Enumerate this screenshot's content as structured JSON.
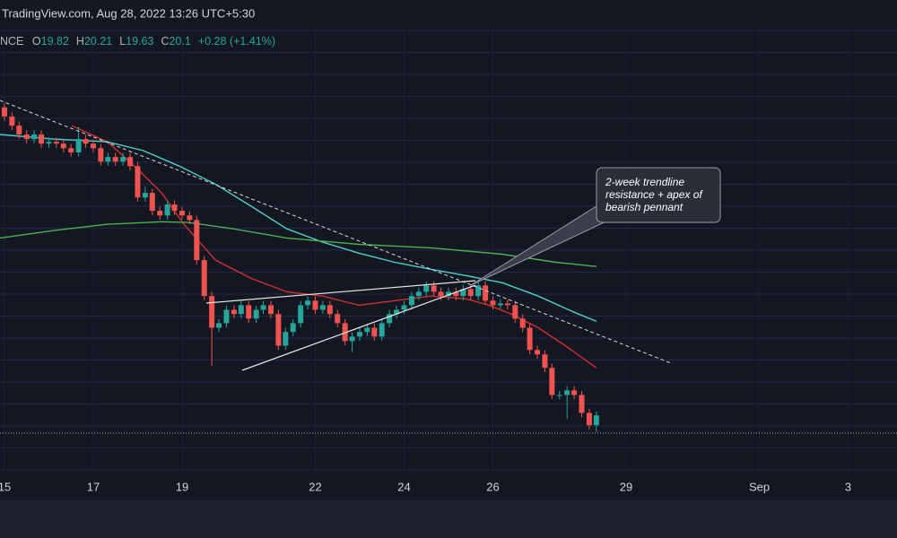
{
  "header": {
    "source": "TradingView.com, Aug 28, 2022 13:26 UTC+5:30"
  },
  "chart_data": {
    "type": "candlestick",
    "symbol": "NCE",
    "legend": [
      {
        "label": "O",
        "value": 19.82
      },
      {
        "label": "H",
        "value": 20.21
      },
      {
        "label": "L",
        "value": 19.63
      },
      {
        "label": "C",
        "value": 20.1
      }
    ],
    "change": "+0.28 (+1.41%)",
    "x": [
      15,
      15.17,
      15.33,
      15.5,
      15.67,
      15.83,
      16,
      16.17,
      16.33,
      16.5,
      16.67,
      16.83,
      17,
      17.17,
      17.33,
      17.5,
      17.67,
      17.83,
      18,
      18.17,
      18.33,
      18.5,
      18.67,
      18.83,
      19,
      19.17,
      19.33,
      19.5,
      19.67,
      19.83,
      20,
      20.17,
      20.33,
      20.5,
      20.67,
      20.83,
      21,
      21.17,
      21.33,
      21.5,
      21.67,
      21.83,
      22,
      22.17,
      22.33,
      22.5,
      22.67,
      22.83,
      23,
      23.17,
      23.33,
      23.5,
      23.67,
      23.83,
      24,
      24.17,
      24.33,
      24.5,
      24.67,
      24.83,
      25,
      25.17,
      25.33,
      25.5,
      25.67,
      25.83,
      26,
      26.17,
      26.33,
      26.5,
      26.67,
      26.83,
      27,
      27.17,
      27.33,
      27.5,
      27.67,
      27.83,
      28,
      28.17,
      28.33
    ],
    "open": [
      28.85,
      28.59,
      28.33,
      28.08,
      27.95,
      28.08,
      27.82,
      27.87,
      27.82,
      27.69,
      27.57,
      27.95,
      27.82,
      27.69,
      27.31,
      27.44,
      27.31,
      27.44,
      27.18,
      26.29,
      26.42,
      25.91,
      25.78,
      26.09,
      25.91,
      25.78,
      25.65,
      24.51,
      23.49,
      22.59,
      22.72,
      23.1,
      22.98,
      23.23,
      22.85,
      23.1,
      23.23,
      22.98,
      22.08,
      22.47,
      22.72,
      23.23,
      23.36,
      23.1,
      23.23,
      22.98,
      22.72,
      22.21,
      22.34,
      22.47,
      22.59,
      22.34,
      22.72,
      22.98,
      23.1,
      23.23,
      23.49,
      23.61,
      23.79,
      23.61,
      23.49,
      23.61,
      23.49,
      23.69,
      23.49,
      23.79,
      23.36,
      23.23,
      23.28,
      23.23,
      22.85,
      22.59,
      21.96,
      21.83,
      21.45,
      20.68,
      20.68,
      20.81,
      20.68,
      20.17,
      19.82
    ],
    "high": [
      28.97,
      28.71,
      28.45,
      28.2,
      28.2,
      28.2,
      27.99,
      27.99,
      27.94,
      27.81,
      28.3,
      28.07,
      27.94,
      27.81,
      27.56,
      27.56,
      27.56,
      27.56,
      27.3,
      26.6,
      26.54,
      26.03,
      26.21,
      26.21,
      26.03,
      25.9,
      25.77,
      24.63,
      23.61,
      22.84,
      23.22,
      23.22,
      23.35,
      23.35,
      23.22,
      23.35,
      23.35,
      23.1,
      22.59,
      22.84,
      23.35,
      23.48,
      23.48,
      23.35,
      23.35,
      23.1,
      22.84,
      22.46,
      22.59,
      22.71,
      22.71,
      22.84,
      23.1,
      23.22,
      23.35,
      23.61,
      23.73,
      23.91,
      23.91,
      23.73,
      23.73,
      23.73,
      23.81,
      23.81,
      23.91,
      23.91,
      23.48,
      23.4,
      23.4,
      23.35,
      22.97,
      22.71,
      22.08,
      21.95,
      21.57,
      20.8,
      20.93,
      20.93,
      20.8,
      20.29,
      20.21
    ],
    "low": [
      28.47,
      28.21,
      27.96,
      27.83,
      27.83,
      27.7,
      27.7,
      27.7,
      27.57,
      27.45,
      27.45,
      27.7,
      27.57,
      27.19,
      27.19,
      27.19,
      27.19,
      27.06,
      26.17,
      26.17,
      25.79,
      25.66,
      25.66,
      25.79,
      25.66,
      25.53,
      24.39,
      23.37,
      21.5,
      22.47,
      22.6,
      22.86,
      22.86,
      22.73,
      22.73,
      22.98,
      22.86,
      21.96,
      21.96,
      22.35,
      22.6,
      23.11,
      22.98,
      22.98,
      22.86,
      22.6,
      22.09,
      21.9,
      22.22,
      22.35,
      22.22,
      22.22,
      22.6,
      22.86,
      22.98,
      23.11,
      23.37,
      23.49,
      23.49,
      23.37,
      23.37,
      23.37,
      23.37,
      23.37,
      23.37,
      23.24,
      23.11,
      23.11,
      23.11,
      22.73,
      22.47,
      21.84,
      21.71,
      21.33,
      20.56,
      20.56,
      20.0,
      20.56,
      20.05,
      19.7,
      19.63
    ],
    "close": [
      28.59,
      28.33,
      28.08,
      27.95,
      28.08,
      27.82,
      27.87,
      27.82,
      27.69,
      27.57,
      27.95,
      27.82,
      27.69,
      27.31,
      27.44,
      27.31,
      27.44,
      27.18,
      26.29,
      26.42,
      25.91,
      25.78,
      26.09,
      25.91,
      25.78,
      25.65,
      24.51,
      23.49,
      22.59,
      22.72,
      23.1,
      22.98,
      23.23,
      22.85,
      23.1,
      23.23,
      22.98,
      22.08,
      22.47,
      22.72,
      23.23,
      23.36,
      23.1,
      23.23,
      22.98,
      22.72,
      22.21,
      22.34,
      22.47,
      22.59,
      22.34,
      22.72,
      22.98,
      23.1,
      23.23,
      23.49,
      23.61,
      23.79,
      23.61,
      23.49,
      23.61,
      23.49,
      23.69,
      23.49,
      23.79,
      23.36,
      23.23,
      23.28,
      23.23,
      22.85,
      22.59,
      21.96,
      21.83,
      21.45,
      20.68,
      20.68,
      20.81,
      20.68,
      20.17,
      19.82,
      20.1
    ],
    "up_color": "#26a69a",
    "down_color": "#ef5350",
    "overlays": [
      {
        "color": "#d32f2f",
        "x": [
          16.52,
          17.32,
          17.93,
          18.54,
          19.04,
          19.75,
          20.56,
          21.36,
          22.17,
          22.98,
          23.79,
          24.6,
          25.4,
          25.91,
          26.41,
          27.02,
          27.63,
          28.33
        ],
        "values": [
          28.33,
          27.87,
          27.18,
          26.42,
          25.53,
          24.51,
          23.99,
          23.61,
          23.49,
          23.23,
          23.36,
          23.49,
          23.41,
          23.23,
          22.98,
          22.59,
          22.08,
          21.45
        ]
      },
      {
        "color": "#4dd0c9",
        "x": [
          14.9,
          16.11,
          17.32,
          18.13,
          18.94,
          19.75,
          20.56,
          21.36,
          22.17,
          22.98,
          23.79,
          24.6,
          25.4,
          26.21,
          27.02,
          27.83,
          28.33
        ],
        "values": [
          28.08,
          27.95,
          27.87,
          27.62,
          27.18,
          26.67,
          26.04,
          25.4,
          25.02,
          24.71,
          24.45,
          24.25,
          24.07,
          23.87,
          23.49,
          23.03,
          22.77
        ]
      },
      {
        "color": "#4caf50",
        "x": [
          14.9,
          16.11,
          17.32,
          18.54,
          19.14,
          20.15,
          21.36,
          22.98,
          24.6,
          26.21,
          27.42,
          28.33
        ],
        "values": [
          25.14,
          25.35,
          25.53,
          25.6,
          25.58,
          25.4,
          25.14,
          24.96,
          24.86,
          24.68,
          24.45,
          24.33
        ]
      }
    ],
    "xlim": [
      14.9,
      35.1
    ],
    "ylim": [
      18.4,
      31.9
    ],
    "xticks": [
      15,
      17,
      19,
      22,
      24,
      26,
      29,
      {
        "value": 32,
        "label": "Sep"
      },
      {
        "value": 34,
        "label": "3"
      }
    ],
    "annotation": [
      "2-week trendline",
      "resistance + apex of",
      "bearish pennant"
    ]
  }
}
